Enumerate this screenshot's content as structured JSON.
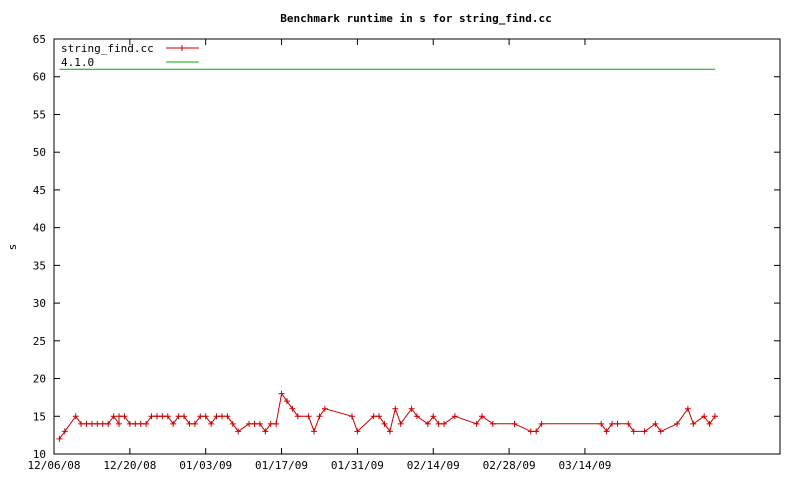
{
  "chart_data": {
    "type": "line",
    "title": "Benchmark runtime in s for string_find.cc",
    "xlabel": "",
    "ylabel": "s",
    "ylim": [
      10,
      65
    ],
    "xlim": [
      "2008-12-06",
      "2009-04-19"
    ],
    "yticks": [
      "10",
      "15",
      "20",
      "25",
      "30",
      "35",
      "40",
      "45",
      "50",
      "55",
      "60",
      "65"
    ],
    "xticks": [
      "12/06/08",
      "12/20/08",
      "01/03/09",
      "01/17/09",
      "01/31/09",
      "02/14/09",
      "02/28/09",
      "03/14/09"
    ],
    "grid": false,
    "legend_position": "top-left",
    "series": [
      {
        "name": "string_find.cc",
        "color": "#cc0000",
        "marker": "plus",
        "points": [
          [
            "2008-12-07",
            12
          ],
          [
            "2008-12-08",
            13
          ],
          [
            "2008-12-10",
            15
          ],
          [
            "2008-12-11",
            14
          ],
          [
            "2008-12-12",
            14
          ],
          [
            "2008-12-13",
            14
          ],
          [
            "2008-12-14",
            14
          ],
          [
            "2008-12-15",
            14
          ],
          [
            "2008-12-16",
            14
          ],
          [
            "2008-12-17",
            15
          ],
          [
            "2008-12-18",
            14
          ],
          [
            "2008-12-18",
            15
          ],
          [
            "2008-12-19",
            15
          ],
          [
            "2008-12-20",
            14
          ],
          [
            "2008-12-21",
            14
          ],
          [
            "2008-12-22",
            14
          ],
          [
            "2008-12-23",
            14
          ],
          [
            "2008-12-24",
            15
          ],
          [
            "2008-12-25",
            15
          ],
          [
            "2008-12-26",
            15
          ],
          [
            "2008-12-27",
            15
          ],
          [
            "2008-12-28",
            14
          ],
          [
            "2008-12-29",
            15
          ],
          [
            "2008-12-30",
            15
          ],
          [
            "2008-12-31",
            14
          ],
          [
            "2009-01-01",
            14
          ],
          [
            "2009-01-02",
            15
          ],
          [
            "2009-01-03",
            15
          ],
          [
            "2009-01-04",
            14
          ],
          [
            "2009-01-05",
            15
          ],
          [
            "2009-01-06",
            15
          ],
          [
            "2009-01-07",
            15
          ],
          [
            "2009-01-08",
            14
          ],
          [
            "2009-01-09",
            13
          ],
          [
            "2009-01-11",
            14
          ],
          [
            "2009-01-12",
            14
          ],
          [
            "2009-01-13",
            14
          ],
          [
            "2009-01-14",
            13
          ],
          [
            "2009-01-15",
            14
          ],
          [
            "2009-01-16",
            14
          ],
          [
            "2009-01-17",
            18
          ],
          [
            "2009-01-18",
            17
          ],
          [
            "2009-01-19",
            16
          ],
          [
            "2009-01-20",
            15
          ],
          [
            "2009-01-22",
            15
          ],
          [
            "2009-01-23",
            13
          ],
          [
            "2009-01-24",
            15
          ],
          [
            "2009-01-25",
            16
          ],
          [
            "2009-01-30",
            15
          ],
          [
            "2009-01-31",
            13
          ],
          [
            "2009-02-03",
            15
          ],
          [
            "2009-02-04",
            15
          ],
          [
            "2009-02-05",
            14
          ],
          [
            "2009-02-06",
            13
          ],
          [
            "2009-02-07",
            16
          ],
          [
            "2009-02-08",
            14
          ],
          [
            "2009-02-10",
            16
          ],
          [
            "2009-02-11",
            15
          ],
          [
            "2009-02-13",
            14
          ],
          [
            "2009-02-14",
            15
          ],
          [
            "2009-02-15",
            14
          ],
          [
            "2009-02-16",
            14
          ],
          [
            "2009-02-18",
            15
          ],
          [
            "2009-02-22",
            14
          ],
          [
            "2009-02-23",
            15
          ],
          [
            "2009-02-25",
            14
          ],
          [
            "2009-03-01",
            14
          ],
          [
            "2009-03-04",
            13
          ],
          [
            "2009-03-05",
            13
          ],
          [
            "2009-03-06",
            14
          ],
          [
            "2009-03-17",
            14
          ],
          [
            "2009-03-18",
            13
          ],
          [
            "2009-03-19",
            14
          ],
          [
            "2009-03-20",
            14
          ],
          [
            "2009-03-22",
            14
          ],
          [
            "2009-03-23",
            13
          ],
          [
            "2009-03-25",
            13
          ],
          [
            "2009-03-27",
            14
          ],
          [
            "2009-03-28",
            13
          ],
          [
            "2009-03-31",
            14
          ],
          [
            "2009-04-02",
            16
          ],
          [
            "2009-04-03",
            14
          ],
          [
            "2009-04-05",
            15
          ],
          [
            "2009-04-06",
            14
          ],
          [
            "2009-04-07",
            15
          ]
        ]
      },
      {
        "name": "4.1.0",
        "color": "#00aa00",
        "marker": "none",
        "points": [
          [
            "2008-12-07",
            61
          ],
          [
            "2009-04-07",
            61
          ]
        ]
      }
    ]
  }
}
